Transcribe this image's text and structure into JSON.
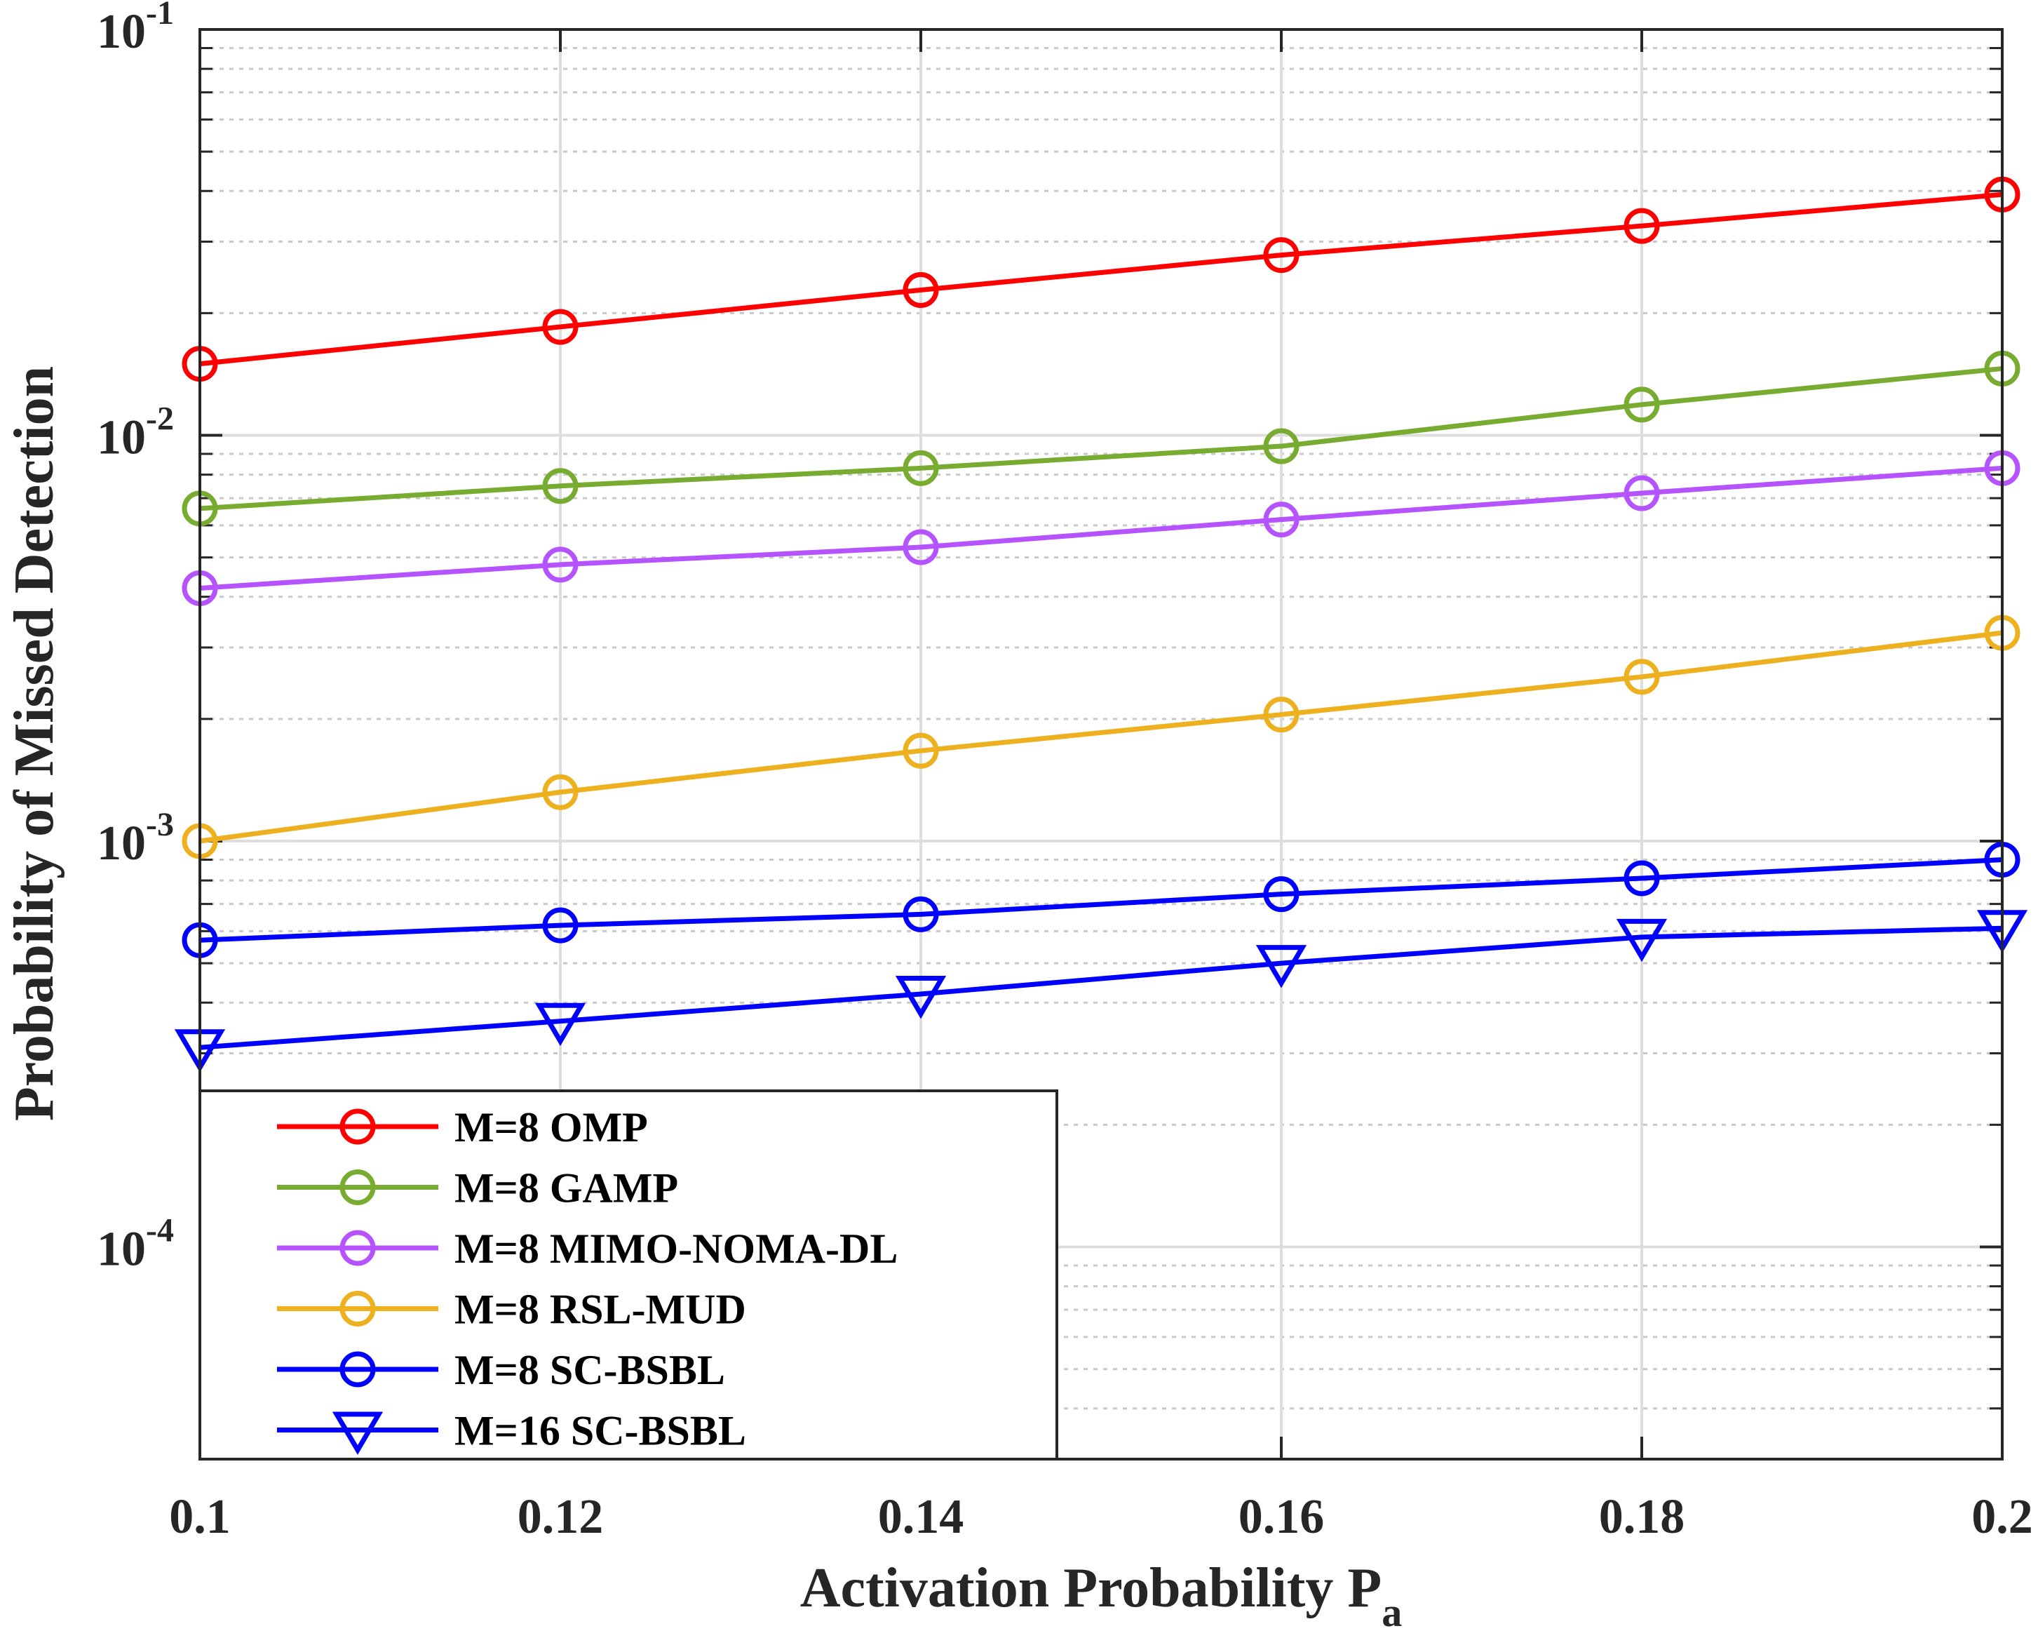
{
  "chart_data": {
    "type": "line",
    "title": "",
    "xlabel": "Activation Probability P",
    "xlabel_subscript": "a",
    "ylabel": "Probability of Missed Detection",
    "x": [
      0.1,
      0.12,
      0.14,
      0.16,
      0.18,
      0.2
    ],
    "xlim": [
      0.1,
      0.2
    ],
    "ylim": [
      3e-05,
      0.1
    ],
    "yscale": "log",
    "grid": true,
    "legend_position": "bottom-left",
    "x_tick_labels": [
      "0.1",
      "0.12",
      "0.14",
      "0.16",
      "0.18",
      "0.2"
    ],
    "y_tick_labels": [
      {
        "value": 0.1,
        "base": "10",
        "exp": "-1"
      },
      {
        "value": 0.01,
        "base": "10",
        "exp": "-2"
      },
      {
        "value": 0.001,
        "base": "10",
        "exp": "-3"
      },
      {
        "value": 0.0001,
        "base": "10",
        "exp": "-4"
      }
    ],
    "series": [
      {
        "name": "M=8 OMP",
        "color": "#ff0000",
        "marker": "circle",
        "values": [
          0.015,
          0.0185,
          0.0228,
          0.0278,
          0.0328,
          0.0392
        ]
      },
      {
        "name": "M=8 GAMP",
        "color": "#77ac30",
        "marker": "circle",
        "values": [
          0.0066,
          0.0075,
          0.0083,
          0.0094,
          0.0119,
          0.0146
        ]
      },
      {
        "name": "M=8 MIMO-NOMA-DL",
        "color": "#b553ff",
        "marker": "circle",
        "values": [
          0.0042,
          0.0048,
          0.0053,
          0.0062,
          0.0072,
          0.0083
        ]
      },
      {
        "name": "M=8 RSL-MUD",
        "color": "#edb120",
        "marker": "circle",
        "values": [
          0.001,
          0.00132,
          0.00167,
          0.00205,
          0.00254,
          0.00326
        ]
      },
      {
        "name": "M=8 SC-BSBL",
        "color": "#0000ff",
        "marker": "circle",
        "values": [
          0.00057,
          0.00062,
          0.00066,
          0.00074,
          0.00081,
          0.0009
        ]
      },
      {
        "name": "M=16 SC-BSBL",
        "color": "#0000ff",
        "marker": "triangle-down",
        "values": [
          0.00031,
          0.00036,
          0.00042,
          0.0005,
          0.00058,
          0.00061
        ]
      }
    ]
  }
}
